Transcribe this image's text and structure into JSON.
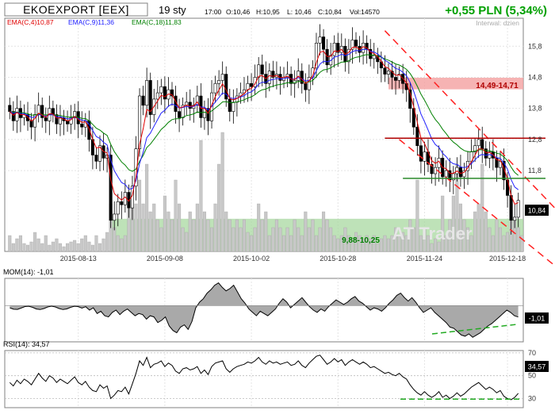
{
  "header": {
    "ticker": "EKOEXPORT [EEX]",
    "date": "19 sty",
    "time": "17:00",
    "open": "O:10,46",
    "high": "H:10,95",
    "low": "L: 10,46",
    "close": "C:10,84",
    "volume": "Vol:14570",
    "change": "+0,55 PLN (5,34%)",
    "interval": "Interwal: dzien"
  },
  "legend": {
    "ema4": "EMA(C,4)10,87",
    "ema9": "EMA(C,9)11,36",
    "ema18": "EMA(C,18)11,83",
    "mom": "MOM(14): -1,01",
    "rsi": "RSI(14): 34,57"
  },
  "annotations": {
    "resistance_zone": "14,49-14,71",
    "support_zone": "9,88-10,25",
    "watermark": "AT Trader",
    "last_price": "10,84",
    "mom_value": "-1,01",
    "rsi_value": "34,57"
  },
  "colors": {
    "ema4": "#e00000",
    "ema9": "#2020ff",
    "ema18": "#008000",
    "change": "#00a000",
    "resist_band": "#f4a0a0",
    "support_band": "#a8d8a0",
    "trend_dash": "#ff2020",
    "hline_dark_red": "#b00000",
    "hline_green": "#2a8a2a",
    "volume": "#c8c8c8",
    "osc_fill": "#a0a0a0",
    "osc_dash": "#22aa22"
  },
  "chart_data": [
    {
      "type": "candlestick",
      "title": "EKOEXPORT [EEX]",
      "x_ticks": [
        "2015-08-13",
        "2015-09-08",
        "2015-10-02",
        "2015-10-28",
        "2015-11-24",
        "2015-12-18"
      ],
      "y_ticks": [
        11.8,
        12.8,
        13.8,
        14.8,
        15.8
      ],
      "ylim": [
        9.2,
        16.7
      ],
      "close": [
        13.7,
        13.4,
        13.8,
        13.5,
        13.6,
        13.4,
        13.2,
        13.6,
        13.9,
        13.5,
        13.4,
        13.8,
        13.6,
        13.3,
        13.5,
        13.4,
        13.3,
        13.5,
        13.7,
        13.3,
        13.2,
        13.4,
        12.8,
        12.3,
        12.1,
        12.6,
        12.2,
        12.3,
        10.2,
        10.4,
        10.8,
        10.7,
        11.1,
        10.6,
        11.3,
        12.5,
        14.2,
        13.9,
        14.7,
        13.6,
        14.1,
        14.3,
        14.5,
        14.1,
        14.4,
        14.2,
        13.7,
        13.5,
        13.9,
        14.0,
        13.8,
        13.9,
        14.2,
        13.5,
        13.8,
        13.4,
        14.3,
        14.6,
        14.7,
        14.9,
        14.1,
        13.7,
        14.0,
        14.2,
        14.3,
        14.4,
        14.6,
        14.5,
        14.8,
        15.2,
        14.9,
        14.6,
        15.0,
        14.8,
        14.9,
        14.7,
        14.8,
        14.9,
        14.6,
        14.7,
        15.0,
        14.6,
        14.4,
        14.8,
        15.1,
        15.9,
        16.1,
        15.7,
        15.2,
        15.5,
        15.9,
        15.6,
        15.8,
        15.3,
        15.7,
        16.0,
        15.8,
        15.6,
        15.9,
        15.7,
        15.4,
        15.5,
        15.3,
        15.1,
        14.9,
        15.0,
        14.8,
        14.7,
        14.9,
        14.6,
        14.4,
        13.8,
        13.2,
        12.6,
        12.1,
        12.4,
        12.0,
        11.7,
        11.9,
        12.2,
        11.6,
        11.8,
        11.5,
        11.7,
        11.9,
        11.6,
        11.8,
        12.1,
        12.4,
        12.6,
        12.8,
        12.5,
        12.2,
        12.4,
        12.2,
        11.9,
        12.1,
        11.5,
        11.0,
        10.2,
        10.3,
        10.84
      ],
      "volume_relative": [
        0.1,
        0.05,
        0.08,
        0.1,
        0.05,
        0.04,
        0.06,
        0.12,
        0.08,
        0.05,
        0.1,
        0.04,
        0.06,
        0.08,
        0.05,
        0.03,
        0.05,
        0.06,
        0.07,
        0.05,
        0.08,
        0.1,
        0.06,
        0.04,
        0.1,
        0.05,
        0.08,
        0.12,
        0.3,
        0.15,
        0.1,
        0.08,
        0.1,
        0.3,
        0.35,
        0.3,
        0.45,
        0.3,
        0.55,
        0.25,
        0.3,
        0.2,
        0.15,
        0.35,
        0.25,
        0.2,
        0.45,
        0.3,
        0.15,
        0.12,
        0.25,
        0.2,
        0.3,
        0.7,
        0.25,
        0.2,
        0.15,
        0.3,
        0.55,
        0.75,
        0.25,
        0.2,
        0.15,
        0.2,
        0.15,
        0.2,
        0.12,
        0.1,
        0.15,
        0.3,
        0.2,
        0.25,
        0.1,
        0.15,
        0.2,
        0.15,
        0.1,
        0.15,
        0.1,
        0.2,
        0.15,
        0.1,
        0.25,
        0.15,
        0.2,
        0.1,
        0.15,
        0.25,
        0.2,
        0.15,
        0.1,
        0.08,
        0.1,
        0.15,
        0.1,
        0.08,
        0.12,
        0.1,
        0.08,
        0.1,
        0.08,
        0.1,
        0.05,
        0.08,
        0.1,
        0.08,
        0.1,
        0.15,
        0.1,
        0.12,
        0.1,
        0.2,
        0.15,
        0.45,
        0.1,
        0.15,
        0.1,
        0.05,
        0.08,
        0.06,
        0.35,
        0.1,
        0.2,
        0.35,
        0.55,
        0.3,
        0.2,
        0.15,
        0.1,
        0.25,
        0.3,
        0.55,
        0.25,
        0.15,
        0.1,
        0.2,
        0.15,
        0.1,
        0.12,
        0.3,
        0.2,
        0.15,
        0.1,
        0.12
      ],
      "ema_labels": [
        "EMA(C,4)10,87",
        "EMA(C,9)11,36",
        "EMA(C,18)11,83"
      ],
      "zones": [
        {
          "label": "14,49-14,71",
          "from": 14.49,
          "to": 14.71
        },
        {
          "label": "9,88-10,25",
          "from": 9.88,
          "to": 10.25
        }
      ],
      "horizontal_lines": [
        12.84,
        11.55
      ],
      "trend_lines": [
        {
          "from_index": 104,
          "from": 16.3,
          "to_index": 142,
          "to": 11.7
        },
        {
          "from_index": 108,
          "from": 12.8,
          "to_index": 142,
          "to": 9.6
        }
      ]
    },
    {
      "type": "line",
      "title": "MOM(14)",
      "last_value": -1.01,
      "values": [
        -0.1,
        -0.4,
        -0.2,
        -0.7,
        -0.5,
        -0.9,
        -1.0,
        -0.6,
        -0.4,
        -0.8,
        -0.5,
        -0.3,
        -0.6,
        -0.9,
        -0.7,
        -0.8,
        -1.2,
        -0.9,
        -1.0,
        -1.5,
        -1.3,
        -1.0,
        -1.8,
        -2.2,
        -2.4,
        -1.9,
        -1.7,
        -2.1,
        -1.4,
        -0.2,
        0.3,
        0.6,
        1.1,
        1.4,
        1.8,
        2.0,
        1.6,
        1.3,
        1.5,
        1.8,
        1.2,
        0.6,
        0.2,
        -0.3,
        -0.6,
        -0.9,
        -0.5,
        -0.7,
        -0.9,
        -0.6,
        -0.3,
        0.2,
        0.6,
        0.3,
        -0.2,
        0.1,
        0.4,
        0.7,
        0.3,
        -0.1,
        -0.4,
        -0.6,
        -0.3,
        -0.5,
        -0.1,
        0.2,
        0.5,
        0.3,
        0.1,
        0.3,
        0.6,
        0.8,
        0.4,
        0.2,
        -0.1,
        -0.4,
        -0.2,
        -0.3,
        -0.5,
        -0.2,
        0.2,
        0.5,
        0.9,
        1.1,
        0.7,
        0.4,
        0.7,
        0.3,
        -0.2,
        -0.6,
        -0.4,
        -0.2,
        -0.6,
        -0.9,
        -1.2,
        -1.5,
        -1.9,
        -2.0,
        -2.3,
        -2.6,
        -2.7,
        -2.5,
        -2.8,
        -2.6,
        -2.4,
        -2.1,
        -1.8,
        -1.6,
        -1.3,
        -1.0,
        -0.7,
        -0.4,
        -0.6,
        -0.9,
        -1.01
      ]
    },
    {
      "type": "line",
      "title": "RSI(14)",
      "y_ticks": [
        30,
        50,
        70
      ],
      "last_value": 34.57,
      "values": [
        44,
        41,
        46,
        43,
        47,
        45,
        42,
        47,
        52,
        48,
        45,
        50,
        48,
        44,
        47,
        45,
        43,
        46,
        49,
        44,
        42,
        45,
        40,
        37,
        36,
        42,
        39,
        41,
        30,
        33,
        37,
        36,
        40,
        34,
        43,
        52,
        63,
        59,
        66,
        57,
        60,
        61,
        63,
        58,
        61,
        59,
        54,
        52,
        56,
        57,
        55,
        56,
        58,
        52,
        55,
        51,
        58,
        61,
        62,
        63,
        56,
        53,
        56,
        58,
        59,
        60,
        62,
        61,
        63,
        66,
        62,
        60,
        63,
        61,
        62,
        60,
        61,
        62,
        59,
        60,
        63,
        59,
        57,
        61,
        64,
        67,
        68,
        64,
        60,
        62,
        65,
        62,
        64,
        59,
        62,
        64,
        62,
        60,
        62,
        60,
        57,
        58,
        56,
        54,
        52,
        53,
        51,
        50,
        52,
        49,
        47,
        42,
        38,
        35,
        33,
        36,
        33,
        31,
        33,
        36,
        31,
        33,
        30,
        32,
        35,
        32,
        34,
        37,
        40,
        42,
        44,
        41,
        38,
        40,
        38,
        35,
        37,
        32,
        30,
        29,
        31,
        34.57
      ]
    }
  ]
}
